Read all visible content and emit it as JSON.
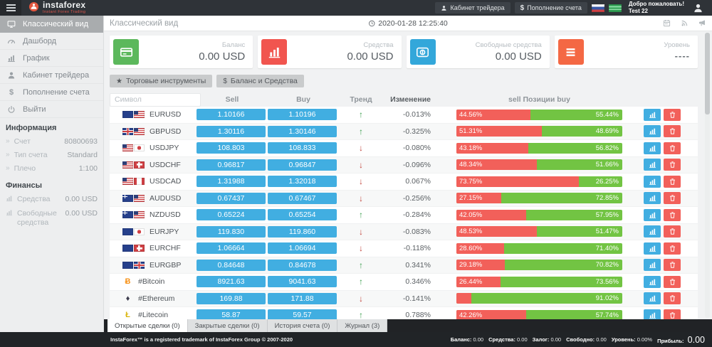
{
  "icons": {
    "chevron": "»",
    "up_arrow": "↑",
    "down_arrow": "↓",
    "crypto-btc": "Ƀ",
    "crypto-eth": "♦",
    "crypto-ltc": "Ł"
  },
  "colors": {
    "accent_blue": "#41aee1",
    "positive_green": "#72c443",
    "negative_red": "#f2605a",
    "card_green": "#5cb85c",
    "card_red": "#f1554f",
    "card_blue": "#33a7da",
    "card_orange": "#f46844"
  },
  "header": {
    "logo_text": "instaforex",
    "logo_tagline": "Instant Forex Trading",
    "trader_cabinet_btn": "Кабинет трейдера",
    "deposit_btn": "Пополнение счета",
    "deposit_icon": "$",
    "welcome_line1": "Добро пожаловать!",
    "welcome_line2": "Test 22"
  },
  "sidebar": {
    "menu": [
      {
        "name": "classic-view",
        "label": "Классический вид",
        "icon": "monitor-icon",
        "active": true
      },
      {
        "name": "dashboard",
        "label": "Дашборд",
        "icon": "gauge-icon"
      },
      {
        "name": "chart",
        "label": "График",
        "icon": "chart-icon"
      },
      {
        "name": "trader-cabinet",
        "label": "Кабинет трейдера",
        "icon": "person-icon"
      },
      {
        "name": "deposit",
        "label": "Пополнение счета",
        "icon": "dollar-icon",
        "glyph": "$"
      },
      {
        "name": "logout",
        "label": "Выйти",
        "icon": "power-icon"
      }
    ],
    "info_header": "Информация",
    "info": [
      {
        "label": "Счет",
        "value": "80800693"
      },
      {
        "label": "Тип счета",
        "value": "Standard"
      },
      {
        "label": "Плечо",
        "value": "1:100"
      }
    ],
    "finance_header": "Финансы",
    "finance": [
      {
        "label": "Средства",
        "value": "0.00 USD",
        "icon": "chart-mini-icon"
      },
      {
        "label": "Свободные средства",
        "value": "0.00 USD",
        "icon": "chart-mini-icon"
      }
    ]
  },
  "topbar": {
    "title": "Классический вид",
    "datetime": "2020-01-28 12:25:40"
  },
  "cards": [
    {
      "name": "balance-card",
      "label": "Баланс",
      "value": "0.00 USD",
      "icon": "credit-card-icon",
      "color": "#5cb85c"
    },
    {
      "name": "funds-card",
      "label": "Средства",
      "value": "0.00 USD",
      "icon": "bar-chart-icon",
      "color": "#f1554f"
    },
    {
      "name": "free-funds-card",
      "label": "Свободные средства",
      "value": "0.00 USD",
      "icon": "coin-icon",
      "color": "#33a7da"
    },
    {
      "name": "level-card",
      "label": "Уровень",
      "value": "----",
      "icon": "menu-lines-icon",
      "color": "#f46844",
      "dashes": true
    }
  ],
  "filters": [
    {
      "name": "trading-instruments",
      "glyph": "★",
      "icon": "star-icon",
      "label": "Торговые инструменты"
    },
    {
      "name": "balance-funds",
      "glyph": "$",
      "icon": "dollar-icon",
      "label": "Баланс и Средства"
    }
  ],
  "table": {
    "search_placeholder": "Символ",
    "headers": {
      "sell": "Sell",
      "buy": "Buy",
      "trend": "Тренд",
      "change": "Изменение",
      "positions": "sell Позиции buy"
    },
    "rows": [
      {
        "symbol": "EURUSD",
        "icons": [
          "eu",
          "us"
        ],
        "sell": "1.10166",
        "buy": "1.10196",
        "trend": "up",
        "change": "-0.013%",
        "red_pct": 44.56,
        "red_label": "44.56%",
        "green_label": "55.44%"
      },
      {
        "symbol": "GBPUSD",
        "icons": [
          "gb",
          "us"
        ],
        "sell": "1.30116",
        "buy": "1.30146",
        "trend": "up",
        "change": "-0.325%",
        "red_pct": 51.31,
        "red_label": "51.31%",
        "green_label": "48.69%"
      },
      {
        "symbol": "USDJPY",
        "icons": [
          "us",
          "jp"
        ],
        "sell": "108.803",
        "buy": "108.833",
        "trend": "down",
        "change": "-0.080%",
        "red_pct": 43.18,
        "red_label": "43.18%",
        "green_label": "56.82%"
      },
      {
        "symbol": "USDCHF",
        "icons": [
          "us",
          "ch"
        ],
        "sell": "0.96817",
        "buy": "0.96847",
        "trend": "down",
        "change": "-0.096%",
        "red_pct": 48.34,
        "red_label": "48.34%",
        "green_label": "51.66%"
      },
      {
        "symbol": "USDCAD",
        "icons": [
          "us",
          "ca"
        ],
        "sell": "1.31988",
        "buy": "1.32018",
        "trend": "down",
        "change": "0.067%",
        "red_pct": 73.75,
        "red_label": "73.75%",
        "green_label": "26.25%"
      },
      {
        "symbol": "AUDUSD",
        "icons": [
          "au",
          "us"
        ],
        "sell": "0.67437",
        "buy": "0.67467",
        "trend": "down",
        "change": "-0.256%",
        "red_pct": 27.15,
        "red_label": "27.15%",
        "green_label": "72.85%"
      },
      {
        "symbol": "NZDUSD",
        "icons": [
          "nz",
          "us"
        ],
        "sell": "0.65224",
        "buy": "0.65254",
        "trend": "up",
        "change": "-0.284%",
        "red_pct": 42.05,
        "red_label": "42.05%",
        "green_label": "57.95%"
      },
      {
        "symbol": "EURJPY",
        "icons": [
          "eu",
          "jp"
        ],
        "sell": "119.830",
        "buy": "119.860",
        "trend": "down",
        "change": "-0.083%",
        "red_pct": 48.53,
        "red_label": "48.53%",
        "green_label": "51.47%"
      },
      {
        "symbol": "EURCHF",
        "icons": [
          "eu",
          "ch"
        ],
        "sell": "1.06664",
        "buy": "1.06694",
        "trend": "down",
        "change": "-0.118%",
        "red_pct": 28.6,
        "red_label": "28.60%",
        "green_label": "71.40%"
      },
      {
        "symbol": "EURGBP",
        "icons": [
          "eu",
          "gb"
        ],
        "sell": "0.84648",
        "buy": "0.84678",
        "trend": "up",
        "change": "0.341%",
        "red_pct": 29.18,
        "red_label": "29.18%",
        "green_label": "70.82%"
      },
      {
        "symbol": "#Bitcoin",
        "icons": [
          "crypto-btc"
        ],
        "sell": "8921.63",
        "buy": "9041.63",
        "trend": "up",
        "change": "0.346%",
        "red_pct": 26.44,
        "red_label": "26.44%",
        "green_label": "73.56%"
      },
      {
        "symbol": "#Ethereum",
        "icons": [
          "crypto-eth"
        ],
        "sell": "169.88",
        "buy": "171.88",
        "trend": "down",
        "change": "-0.141%",
        "red_pct": 8.98,
        "red_label": "",
        "green_label": "91.02%"
      },
      {
        "symbol": "#Litecoin",
        "icons": [
          "crypto-ltc"
        ],
        "sell": "58.87",
        "buy": "59.57",
        "trend": "up",
        "change": "0.788%",
        "red_pct": 42.26,
        "red_label": "42.26%",
        "green_label": "57.74%"
      },
      {
        "symbol": "",
        "icons": [],
        "sell": "",
        "buy": "",
        "trend": "",
        "change": "",
        "red_pct": 3,
        "red_label": "",
        "green_label": ""
      }
    ]
  },
  "tabs": [
    {
      "name": "open-trades",
      "label": "Открытые сделки (0)",
      "active": true
    },
    {
      "name": "closed-trades",
      "label": "Закрытые сделки (0)"
    },
    {
      "name": "account-history",
      "label": "История счета (0)"
    },
    {
      "name": "journal",
      "label": "Журнал (3)"
    }
  ],
  "footer": {
    "copyright": "InstaForex™ is a registered trademark of InstaForex Group © 2007-2020",
    "summary": [
      {
        "label": "Баланс:",
        "value": "0.00"
      },
      {
        "label": "Средства:",
        "value": "0.00"
      },
      {
        "label": "Залог:",
        "value": "0.00"
      },
      {
        "label": "Свободно:",
        "value": "0.00"
      },
      {
        "label": "Уровень:",
        "value": "0.00%"
      },
      {
        "label": "Прибыль:",
        "value": "0.00",
        "big": true
      }
    ]
  }
}
